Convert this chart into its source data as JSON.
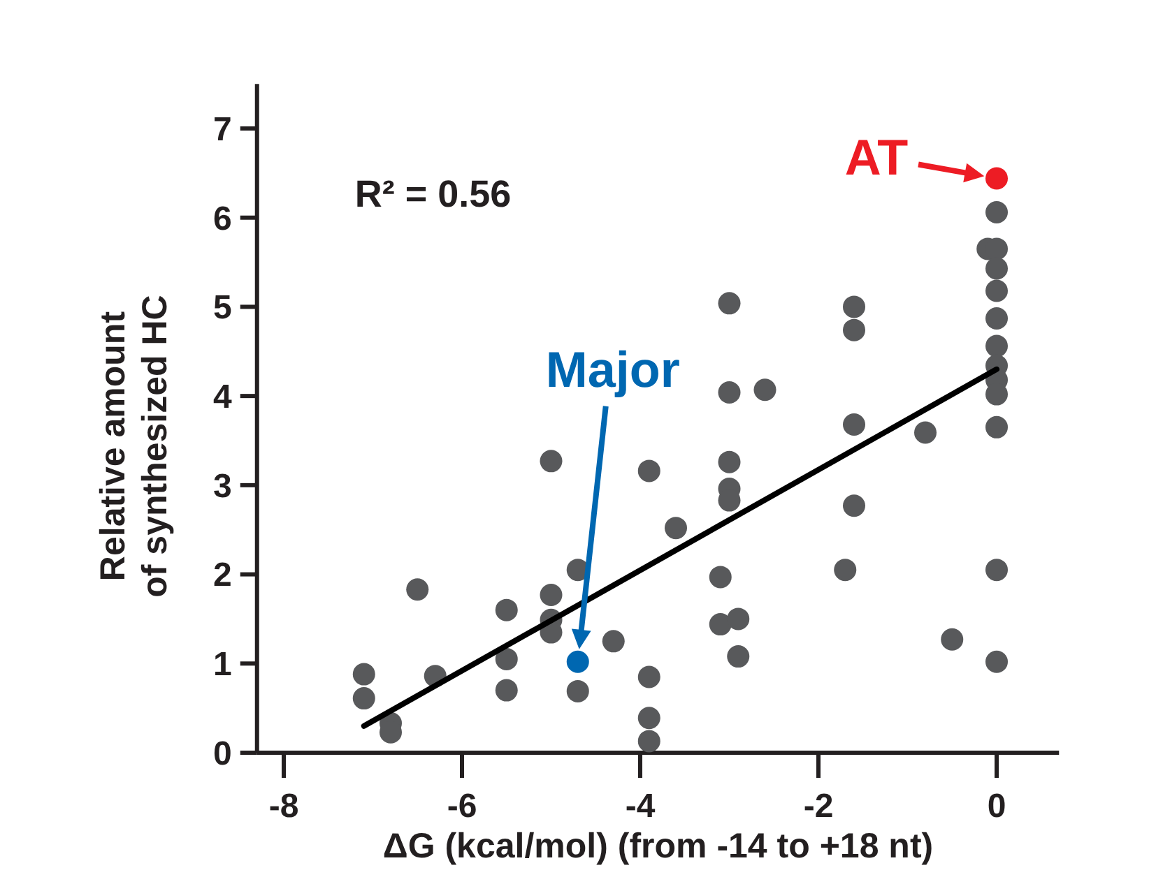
{
  "chart_data": {
    "type": "scatter",
    "xlabel": "ΔG (kcal/mol) (from -14 to +18 nt)",
    "ylabel": "Relative amount of synthesized HC",
    "xlim": [
      -8.3,
      0.7
    ],
    "ylim": [
      0,
      7.5
    ],
    "xticks": [
      -8,
      -6,
      -4,
      -2,
      0
    ],
    "yticks": [
      0,
      1,
      2,
      3,
      4,
      5,
      6,
      7
    ],
    "grid": false,
    "marker": "circle",
    "series": [
      {
        "color": "#58595b",
        "x": [
          -7.1,
          -7.1,
          -6.8,
          -6.8,
          -6.5,
          -6.3,
          -5.5,
          -5.5,
          -5.5,
          -5.0,
          -5.0,
          -5.0,
          -5.0,
          -4.7,
          -4.7,
          -4.3,
          -3.9,
          -3.9,
          -3.9,
          -3.9,
          -3.6,
          -3.0,
          -3.0,
          -3.0,
          -3.0,
          -3.0,
          -3.1,
          -3.1,
          -2.9,
          -2.9,
          -2.6,
          -1.6,
          -1.6,
          -1.6,
          -1.6,
          -1.7,
          -0.8,
          -0.5,
          0,
          -0.1,
          0,
          0,
          0,
          0,
          0,
          0,
          0,
          0,
          0,
          0,
          0
        ],
        "values": [
          0.88,
          0.61,
          0.33,
          0.23,
          1.83,
          0.86,
          1.6,
          1.05,
          0.7,
          3.27,
          1.77,
          1.49,
          1.35,
          2.05,
          0.69,
          1.25,
          3.16,
          0.85,
          0.39,
          0.13,
          2.52,
          5.04,
          4.04,
          3.26,
          2.96,
          2.83,
          1.97,
          1.44,
          1.5,
          1.08,
          4.07,
          5.0,
          4.74,
          3.68,
          2.77,
          2.05,
          3.59,
          1.27,
          6.06,
          5.65,
          5.65,
          5.43,
          5.18,
          4.87,
          4.56,
          4.34,
          4.18,
          4.02,
          3.65,
          2.05,
          1.02
        ]
      },
      {
        "color": "#0067b1",
        "x": [
          -4.7
        ],
        "values": [
          1.02
        ]
      },
      {
        "color": "#ed1c24",
        "x": [
          0
        ],
        "values": [
          6.44
        ]
      },
      {
        "type": "line",
        "color": "#000000",
        "x": [
          -7.1,
          0
        ],
        "values": [
          0.3,
          4.3
        ],
        "marker": "none",
        "line_style": "solid"
      }
    ],
    "annotations": [
      "R² = 0.56",
      "Major",
      {
        "text": "AT",
        "x": 0,
        "y": 6.44
      }
    ]
  }
}
